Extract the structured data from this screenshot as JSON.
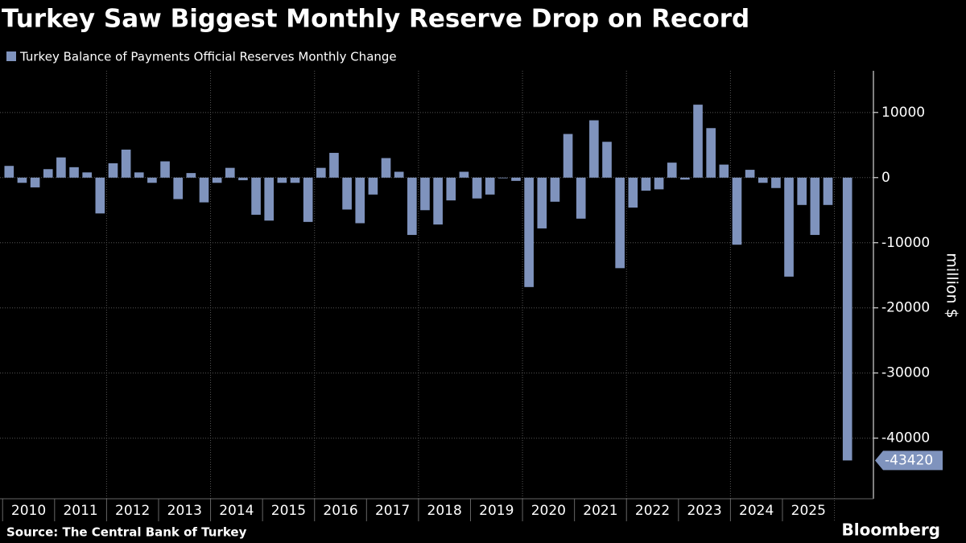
{
  "chart_data": {
    "type": "bar",
    "title": "Turkey Saw Biggest Monthly Reserve Drop on Record",
    "y_label": "million $",
    "source": "Source: The Central Bank of Turkey",
    "brand": "Bloomberg",
    "name": "Turkey Balance of Payments Official Reserves Monthly Change",
    "color": "#7f93bd",
    "x": [
      2010.125,
      2010.375,
      2010.625,
      2010.875,
      2011.125,
      2011.375,
      2011.625,
      2011.875,
      2012.125,
      2012.375,
      2012.625,
      2012.875,
      2013.125,
      2013.375,
      2013.625,
      2013.875,
      2014.125,
      2014.375,
      2014.625,
      2014.875,
      2015.125,
      2015.375,
      2015.625,
      2015.875,
      2016.125,
      2016.375,
      2016.625,
      2016.875,
      2017.125,
      2017.375,
      2017.625,
      2017.875,
      2018.125,
      2018.375,
      2018.625,
      2018.875,
      2019.125,
      2019.375,
      2019.625,
      2019.875,
      2020.125,
      2020.375,
      2020.625,
      2020.875,
      2021.125,
      2021.375,
      2021.625,
      2021.875,
      2022.125,
      2022.375,
      2022.625,
      2022.875,
      2023.125,
      2023.375,
      2023.625,
      2023.875,
      2024.125,
      2024.375,
      2024.625,
      2024.875,
      2025.125,
      2025.375,
      2025.625,
      2025.875,
      2026.25
    ],
    "values": [
      1800,
      -800,
      -1500,
      1300,
      3100,
      1600,
      800,
      -5500,
      2200,
      4300,
      800,
      -800,
      2500,
      -3300,
      700,
      -3800,
      -800,
      1500,
      -400,
      -5700,
      -6600,
      -800,
      -800,
      -6800,
      1500,
      3800,
      -4900,
      -7000,
      -2600,
      3000,
      900,
      -8800,
      -5000,
      -7200,
      -3500,
      900,
      -3200,
      -2600,
      -100,
      -500,
      -16800,
      -7800,
      -3700,
      6700,
      -6300,
      8800,
      5500,
      -13900,
      -4600,
      -2000,
      -1800,
      2300,
      -300,
      11200,
      7600,
      2000,
      -10300,
      1200,
      -800,
      -1600,
      -15200,
      -4200,
      -8800,
      -4200,
      -43420
    ],
    "xlim": [
      2009.95,
      2026.75
    ],
    "xticks": [
      2010,
      2011,
      2012,
      2013,
      2014,
      2015,
      2016,
      2017,
      2018,
      2019,
      2020,
      2021,
      2022,
      2023,
      2024,
      2025
    ],
    "ylim": [
      -49300,
      16400
    ],
    "yticks": [
      10000,
      0,
      -10000,
      -20000,
      -30000,
      -40000
    ],
    "grid": true
  }
}
